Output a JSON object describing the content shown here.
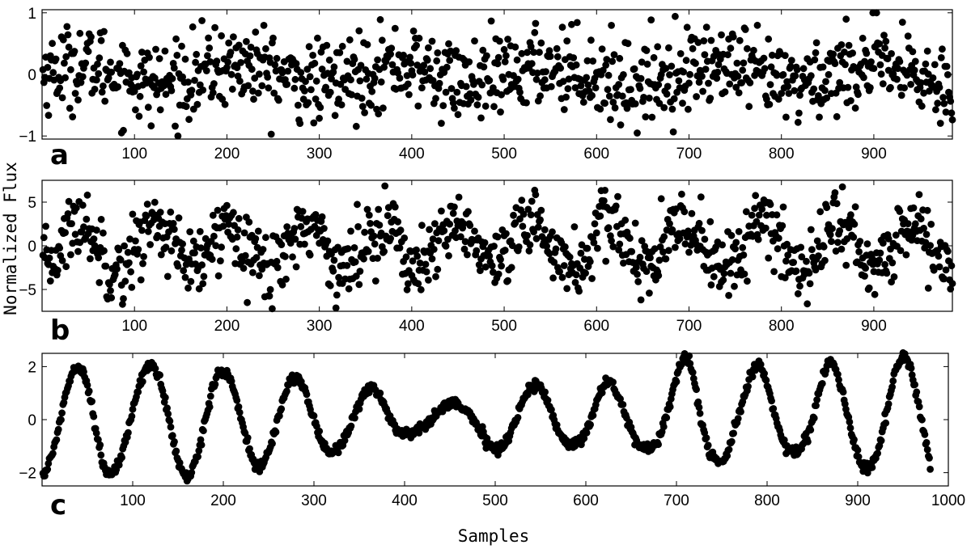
{
  "figure": {
    "ylabel": "Normalized Flux",
    "xlabel": "Samples"
  },
  "chart_data": [
    {
      "type": "scatter",
      "panel": "a",
      "xlim": [
        0,
        985
      ],
      "ylim": [
        -1.05,
        1.05
      ],
      "xticks": [
        100,
        200,
        300,
        400,
        500,
        600,
        700,
        800,
        900
      ],
      "yticks": [
        -1,
        0,
        1
      ],
      "n_points": 985,
      "signal": "random noise with weak slow modulation",
      "series": [
        {
          "values_summary": "scatter of ~985 points, y mostly between -0.8 and 0.8"
        }
      ]
    },
    {
      "type": "scatter",
      "panel": "b",
      "xlim": [
        0,
        985
      ],
      "ylim": [
        -7.5,
        7.5
      ],
      "xticks": [
        100,
        200,
        300,
        400,
        500,
        600,
        700,
        800,
        900
      ],
      "yticks": [
        -5,
        0,
        5
      ],
      "n_points": 985,
      "signal": "noisy oscillation, period ~80 samples, amplitude ~3",
      "series": [
        {
          "values_summary": "scatter of ~985 points, y mostly between -6 and 6"
        }
      ]
    },
    {
      "type": "scatter",
      "panel": "c",
      "xlim": [
        0,
        1000
      ],
      "ylim": [
        -2.5,
        2.5
      ],
      "xticks": [
        100,
        200,
        300,
        400,
        500,
        600,
        700,
        800,
        900,
        1000
      ],
      "yticks": [
        -2,
        0,
        2
      ],
      "n_points": 980,
      "signal": "clean sinusoid, period ~80 samples, amplitude modulated: ~2 at edges, ~0.4 near sample 450",
      "peaks": [
        [
          40,
          2.05
        ],
        [
          120,
          2.05
        ],
        [
          200,
          1.8
        ],
        [
          280,
          1.6
        ],
        [
          365,
          1.2
        ],
        [
          450,
          0.6
        ],
        [
          545,
          1.35
        ],
        [
          625,
          1.45
        ],
        [
          710,
          2.4
        ],
        [
          790,
          2.1
        ],
        [
          870,
          2.2
        ],
        [
          950,
          2.4
        ]
      ],
      "troughs": [
        [
          75,
          -2.1
        ],
        [
          160,
          -2.2
        ],
        [
          240,
          -1.8
        ],
        [
          320,
          -1.2
        ],
        [
          405,
          -0.5
        ],
        [
          500,
          -1.1
        ],
        [
          585,
          -0.9
        ],
        [
          665,
          -1.0
        ],
        [
          745,
          -1.5
        ],
        [
          830,
          -1.1
        ],
        [
          910,
          -1.8
        ]
      ]
    }
  ],
  "panel_letters": [
    "a",
    "b",
    "c"
  ]
}
